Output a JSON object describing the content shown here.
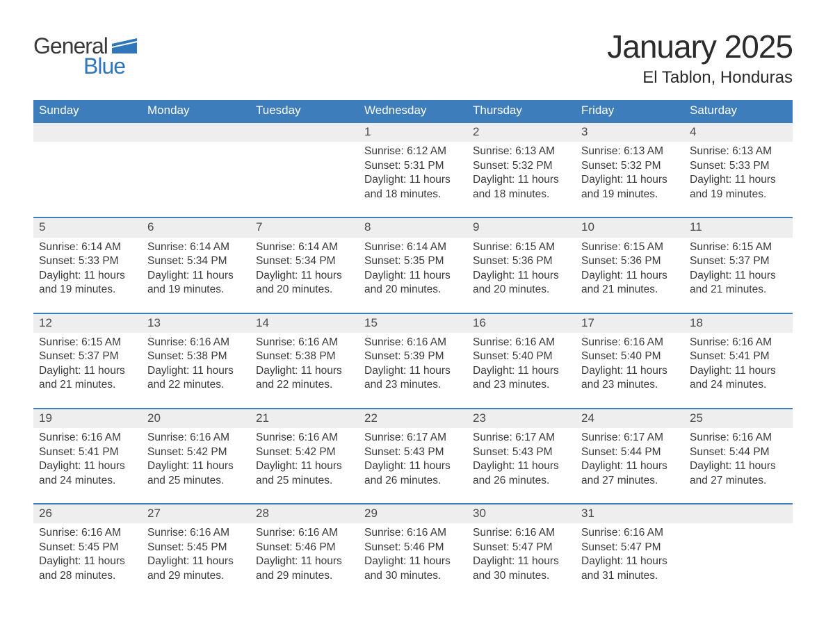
{
  "brand": {
    "word1": "General",
    "word2": "Blue",
    "brand_color": "#2f77ba",
    "text_color": "#3a3a3a"
  },
  "header": {
    "month_title": "January 2025",
    "location": "El Tablon, Honduras",
    "title_color": "#2b2b2b",
    "title_fontsize_pt": 34,
    "location_fontsize_pt": 18
  },
  "calendar": {
    "header_bg": "#3e7dbb",
    "header_text_color": "#ffffff",
    "rule_color": "#3e7dbb",
    "daynum_bg": "#eeeeee",
    "body_text_color": "#3a3a3a",
    "day_headers": [
      "Sunday",
      "Monday",
      "Tuesday",
      "Wednesday",
      "Thursday",
      "Friday",
      "Saturday"
    ],
    "labels": {
      "sunrise": "Sunrise:",
      "sunset": "Sunset:",
      "daylight_prefix": "Daylight:",
      "and": "and",
      "minutes_suffix": "minutes."
    },
    "days": [
      {
        "n": 1,
        "sunrise": "6:12 AM",
        "sunset": "5:31 PM",
        "dl_h": 11,
        "dl_m": 18
      },
      {
        "n": 2,
        "sunrise": "6:13 AM",
        "sunset": "5:32 PM",
        "dl_h": 11,
        "dl_m": 18
      },
      {
        "n": 3,
        "sunrise": "6:13 AM",
        "sunset": "5:32 PM",
        "dl_h": 11,
        "dl_m": 19
      },
      {
        "n": 4,
        "sunrise": "6:13 AM",
        "sunset": "5:33 PM",
        "dl_h": 11,
        "dl_m": 19
      },
      {
        "n": 5,
        "sunrise": "6:14 AM",
        "sunset": "5:33 PM",
        "dl_h": 11,
        "dl_m": 19
      },
      {
        "n": 6,
        "sunrise": "6:14 AM",
        "sunset": "5:34 PM",
        "dl_h": 11,
        "dl_m": 19
      },
      {
        "n": 7,
        "sunrise": "6:14 AM",
        "sunset": "5:34 PM",
        "dl_h": 11,
        "dl_m": 20
      },
      {
        "n": 8,
        "sunrise": "6:14 AM",
        "sunset": "5:35 PM",
        "dl_h": 11,
        "dl_m": 20
      },
      {
        "n": 9,
        "sunrise": "6:15 AM",
        "sunset": "5:36 PM",
        "dl_h": 11,
        "dl_m": 20
      },
      {
        "n": 10,
        "sunrise": "6:15 AM",
        "sunset": "5:36 PM",
        "dl_h": 11,
        "dl_m": 21
      },
      {
        "n": 11,
        "sunrise": "6:15 AM",
        "sunset": "5:37 PM",
        "dl_h": 11,
        "dl_m": 21
      },
      {
        "n": 12,
        "sunrise": "6:15 AM",
        "sunset": "5:37 PM",
        "dl_h": 11,
        "dl_m": 21
      },
      {
        "n": 13,
        "sunrise": "6:16 AM",
        "sunset": "5:38 PM",
        "dl_h": 11,
        "dl_m": 22
      },
      {
        "n": 14,
        "sunrise": "6:16 AM",
        "sunset": "5:38 PM",
        "dl_h": 11,
        "dl_m": 22
      },
      {
        "n": 15,
        "sunrise": "6:16 AM",
        "sunset": "5:39 PM",
        "dl_h": 11,
        "dl_m": 23
      },
      {
        "n": 16,
        "sunrise": "6:16 AM",
        "sunset": "5:40 PM",
        "dl_h": 11,
        "dl_m": 23
      },
      {
        "n": 17,
        "sunrise": "6:16 AM",
        "sunset": "5:40 PM",
        "dl_h": 11,
        "dl_m": 23
      },
      {
        "n": 18,
        "sunrise": "6:16 AM",
        "sunset": "5:41 PM",
        "dl_h": 11,
        "dl_m": 24
      },
      {
        "n": 19,
        "sunrise": "6:16 AM",
        "sunset": "5:41 PM",
        "dl_h": 11,
        "dl_m": 24
      },
      {
        "n": 20,
        "sunrise": "6:16 AM",
        "sunset": "5:42 PM",
        "dl_h": 11,
        "dl_m": 25
      },
      {
        "n": 21,
        "sunrise": "6:16 AM",
        "sunset": "5:42 PM",
        "dl_h": 11,
        "dl_m": 25
      },
      {
        "n": 22,
        "sunrise": "6:17 AM",
        "sunset": "5:43 PM",
        "dl_h": 11,
        "dl_m": 26
      },
      {
        "n": 23,
        "sunrise": "6:17 AM",
        "sunset": "5:43 PM",
        "dl_h": 11,
        "dl_m": 26
      },
      {
        "n": 24,
        "sunrise": "6:17 AM",
        "sunset": "5:44 PM",
        "dl_h": 11,
        "dl_m": 27
      },
      {
        "n": 25,
        "sunrise": "6:16 AM",
        "sunset": "5:44 PM",
        "dl_h": 11,
        "dl_m": 27
      },
      {
        "n": 26,
        "sunrise": "6:16 AM",
        "sunset": "5:45 PM",
        "dl_h": 11,
        "dl_m": 28
      },
      {
        "n": 27,
        "sunrise": "6:16 AM",
        "sunset": "5:45 PM",
        "dl_h": 11,
        "dl_m": 29
      },
      {
        "n": 28,
        "sunrise": "6:16 AM",
        "sunset": "5:46 PM",
        "dl_h": 11,
        "dl_m": 29
      },
      {
        "n": 29,
        "sunrise": "6:16 AM",
        "sunset": "5:46 PM",
        "dl_h": 11,
        "dl_m": 30
      },
      {
        "n": 30,
        "sunrise": "6:16 AM",
        "sunset": "5:47 PM",
        "dl_h": 11,
        "dl_m": 30
      },
      {
        "n": 31,
        "sunrise": "6:16 AM",
        "sunset": "5:47 PM",
        "dl_h": 11,
        "dl_m": 31
      }
    ],
    "first_weekday_index": 3,
    "weeks": 5
  }
}
